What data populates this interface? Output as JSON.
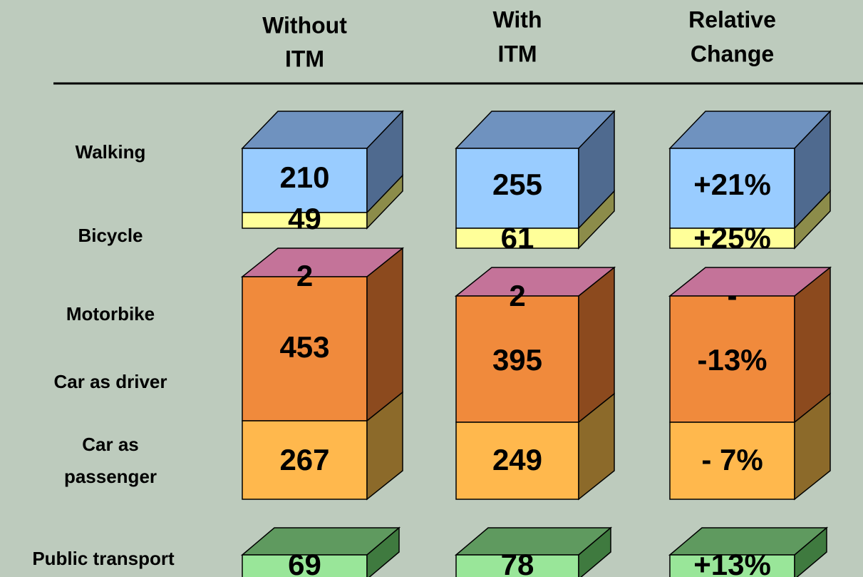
{
  "header": {
    "columns": [
      [
        "Without",
        "ITM"
      ],
      [
        "With",
        "ITM"
      ],
      [
        "Relative",
        "Change"
      ]
    ]
  },
  "rows": [
    [
      "Walking"
    ],
    [
      "Bicycle"
    ],
    [
      "Motorbike"
    ],
    [
      "Car as driver"
    ],
    [
      "Car as",
      "passenger"
    ],
    [
      "Public transport"
    ]
  ],
  "table": {
    "columns": [
      [
        210,
        49,
        2,
        453,
        267,
        69
      ],
      [
        255,
        61,
        2,
        395,
        249,
        78
      ],
      [
        "+21%",
        "+25%",
        "-",
        "-13%",
        "- 7%",
        "+13%"
      ]
    ]
  }
}
